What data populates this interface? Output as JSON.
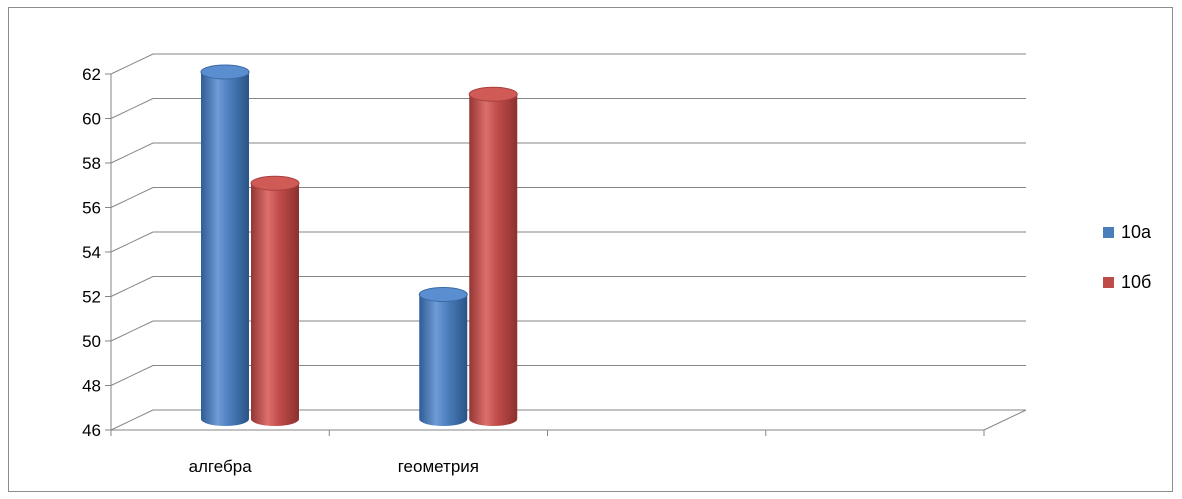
{
  "chart_data": {
    "type": "bar",
    "categories": [
      "алгебра",
      "геометрия",
      "",
      ""
    ],
    "series": [
      {
        "name": "10а",
        "values": [
          62,
          52,
          null,
          null
        ],
        "color": "#4a7ebb"
      },
      {
        "name": "10б",
        "values": [
          57,
          61,
          null,
          null
        ],
        "color": "#be4b48"
      }
    ],
    "ylim": [
      46,
      62
    ],
    "yticks": [
      46,
      48,
      50,
      52,
      54,
      56,
      58,
      60,
      62
    ],
    "grid": true,
    "legend": "right",
    "style": "3d-cylinder"
  }
}
